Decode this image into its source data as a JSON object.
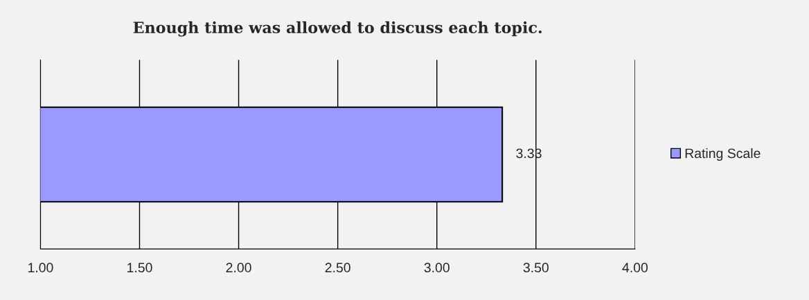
{
  "chart_data": {
    "type": "bar",
    "orientation": "horizontal",
    "title": "Enough time was allowed to discuss each topic.",
    "categories": [
      null
    ],
    "series": [
      {
        "name": "Rating Scale",
        "color": "#9999ff",
        "values": [
          3.33
        ]
      }
    ],
    "xlim": [
      1,
      4
    ],
    "xticks": [
      {
        "value": 1,
        "label": "1.00"
      },
      {
        "value": 1.5,
        "label": "1.50"
      },
      {
        "value": 2,
        "label": "2.00"
      },
      {
        "value": 2.5,
        "label": "2.50"
      },
      {
        "value": 3,
        "label": "3.00"
      },
      {
        "value": 3.5,
        "label": "3.50"
      },
      {
        "value": 4,
        "label": "4.00"
      }
    ],
    "grid": "x",
    "legend": "right",
    "data_labels": true
  }
}
